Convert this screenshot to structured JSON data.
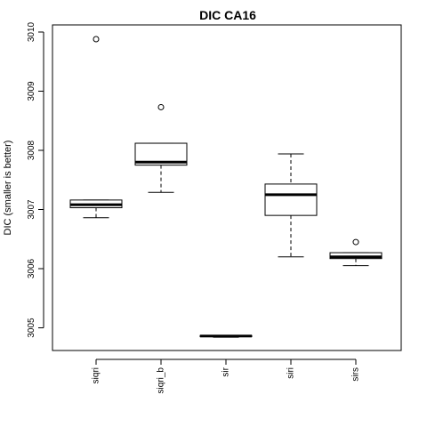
{
  "chart_data": {
    "type": "box",
    "title": "DIC CA16",
    "ylabel": "DIC (smaller is better)",
    "xlabel": "",
    "ylim": [
      3004.6,
      3010.2
    ],
    "yticks": [
      3005,
      3006,
      3007,
      3008,
      3009,
      3010
    ],
    "categories": [
      "siqri",
      "siqri_b",
      "sir",
      "siri",
      "sirs"
    ],
    "boxes": [
      {
        "category": "siqri",
        "whisker_low": 3006.86,
        "q1": 3007.03,
        "median": 3007.08,
        "q3": 3007.16,
        "whisker_high": 3007.16,
        "outliers": [
          3009.88
        ]
      },
      {
        "category": "siqri_b",
        "whisker_low": 3007.29,
        "q1": 3007.75,
        "median": 3007.8,
        "q3": 3008.12,
        "whisker_high": 3008.12,
        "outliers": [
          3008.73
        ]
      },
      {
        "category": "sir",
        "whisker_low": 3004.84,
        "q1": 3004.85,
        "median": 3004.86,
        "q3": 3004.87,
        "whisker_high": 3004.87,
        "outliers": []
      },
      {
        "category": "siri",
        "whisker_low": 3006.2,
        "q1": 3006.9,
        "median": 3007.25,
        "q3": 3007.43,
        "whisker_high": 3007.94,
        "outliers": []
      },
      {
        "category": "sirs",
        "whisker_low": 3006.05,
        "q1": 3006.17,
        "median": 3006.2,
        "q3": 3006.27,
        "whisker_high": 3006.27,
        "outliers": [
          3006.45
        ]
      }
    ],
    "grid": false,
    "legend": "none"
  }
}
